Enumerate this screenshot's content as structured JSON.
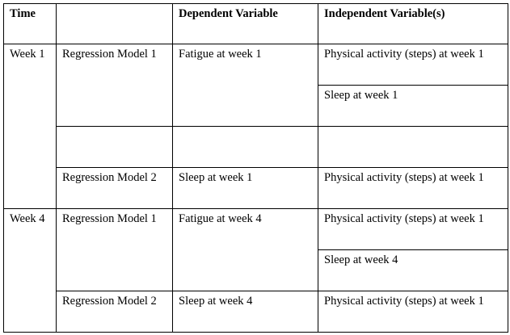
{
  "header": {
    "time": "Time",
    "model": "",
    "dependent": "Dependent Variable",
    "independent": "Independent Variable(s)"
  },
  "rows": [
    {
      "time": "Week 1",
      "model": "Regression Model 1",
      "dependent": "Fatigue at week 1",
      "independent": "Physical activity (steps) at week 1"
    },
    {
      "time": "",
      "model": "",
      "dependent": "",
      "independent": "Sleep at week 1"
    },
    {
      "time": "",
      "model": "",
      "dependent": "",
      "independent": ""
    },
    {
      "time": "",
      "model": "Regression Model 2",
      "dependent": "Sleep at week 1",
      "independent": "Physical activity (steps) at week 1"
    },
    {
      "time": "Week 4",
      "model": "Regression Model 1",
      "dependent": "Fatigue at week 4",
      "independent": "Physical activity (steps) at week 1"
    },
    {
      "time": "",
      "model": "",
      "dependent": "",
      "independent": "Sleep at week 4"
    },
    {
      "time": "",
      "model": "Regression Model 2",
      "dependent": "Sleep at week 4",
      "independent": "Physical activity (steps) at week 1"
    }
  ]
}
